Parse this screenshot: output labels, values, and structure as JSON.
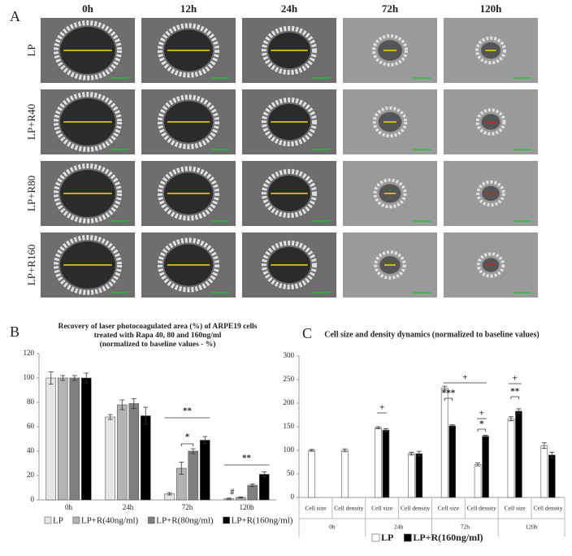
{
  "figure_a": {
    "label": "A",
    "columns": [
      "0h",
      "12h",
      "24h",
      "72h",
      "120h"
    ],
    "rows": [
      "LP",
      "LP+R40",
      "LP+R80",
      "LP+R160"
    ]
  },
  "chart_data": [
    {
      "type": "bar",
      "label": "B",
      "title": [
        "Recovery of laser photocoagulated area (%) of ARPE19 cells",
        "treated with Rapa 40, 80 and 160ng/ml",
        "(normalized to baseline values - %)"
      ],
      "categories": [
        "0h",
        "24h",
        "72h",
        "120h"
      ],
      "series": [
        {
          "name": "LP",
          "color": "#e6e6e6",
          "values": [
            100,
            68,
            5,
            1
          ],
          "errors": [
            5,
            2,
            1,
            0.5
          ]
        },
        {
          "name": "LP+R(40ng/ml)",
          "color": "#b3b3b3",
          "values": [
            100,
            78,
            26,
            2
          ],
          "errors": [
            2,
            4,
            5,
            0.5
          ]
        },
        {
          "name": "LP+R(80ng/ml)",
          "color": "#7f7f7f",
          "values": [
            100,
            79,
            40,
            12
          ],
          "errors": [
            2,
            4,
            2,
            1
          ]
        },
        {
          "name": "LP+R(160ng/ml)",
          "color": "#000000",
          "values": [
            100,
            69,
            49,
            21
          ],
          "errors": [
            4,
            7,
            3,
            2
          ]
        }
      ],
      "annotations": [
        "**",
        "*",
        "**",
        "#"
      ],
      "ylim": [
        0,
        120
      ],
      "yticks": [
        0,
        20,
        40,
        60,
        80,
        100,
        120
      ]
    },
    {
      "type": "bar",
      "label": "C",
      "title": "Cell size and density dynamics (normalized to baseline values)",
      "groups": [
        "0h",
        "24h",
        "72h",
        "120h"
      ],
      "categories": [
        "Cell size",
        "Cell density",
        "Cell size",
        "Cell density",
        "Cell size",
        "Cell density",
        "Cell size",
        "Cell density"
      ],
      "series": [
        {
          "name": "LP",
          "color": "#ffffff",
          "values": [
            100,
            100,
            148,
            93,
            232,
            70,
            167,
            110
          ],
          "errors": [
            2,
            3,
            2,
            3,
            4,
            3,
            4,
            6
          ]
        },
        {
          "name": "LP+R(160ng/ml)",
          "color": "#000000",
          "values": [
            null,
            null,
            143,
            93,
            152,
            130,
            183,
            90
          ],
          "errors": [
            null,
            null,
            3,
            5,
            2,
            2,
            5,
            6
          ]
        }
      ],
      "annotations": [
        "+",
        "+",
        "***",
        "+",
        "*",
        "+",
        "**"
      ],
      "ylim": [
        0,
        300
      ],
      "yticks": [
        0,
        50,
        100,
        150,
        200,
        250,
        300
      ]
    }
  ]
}
